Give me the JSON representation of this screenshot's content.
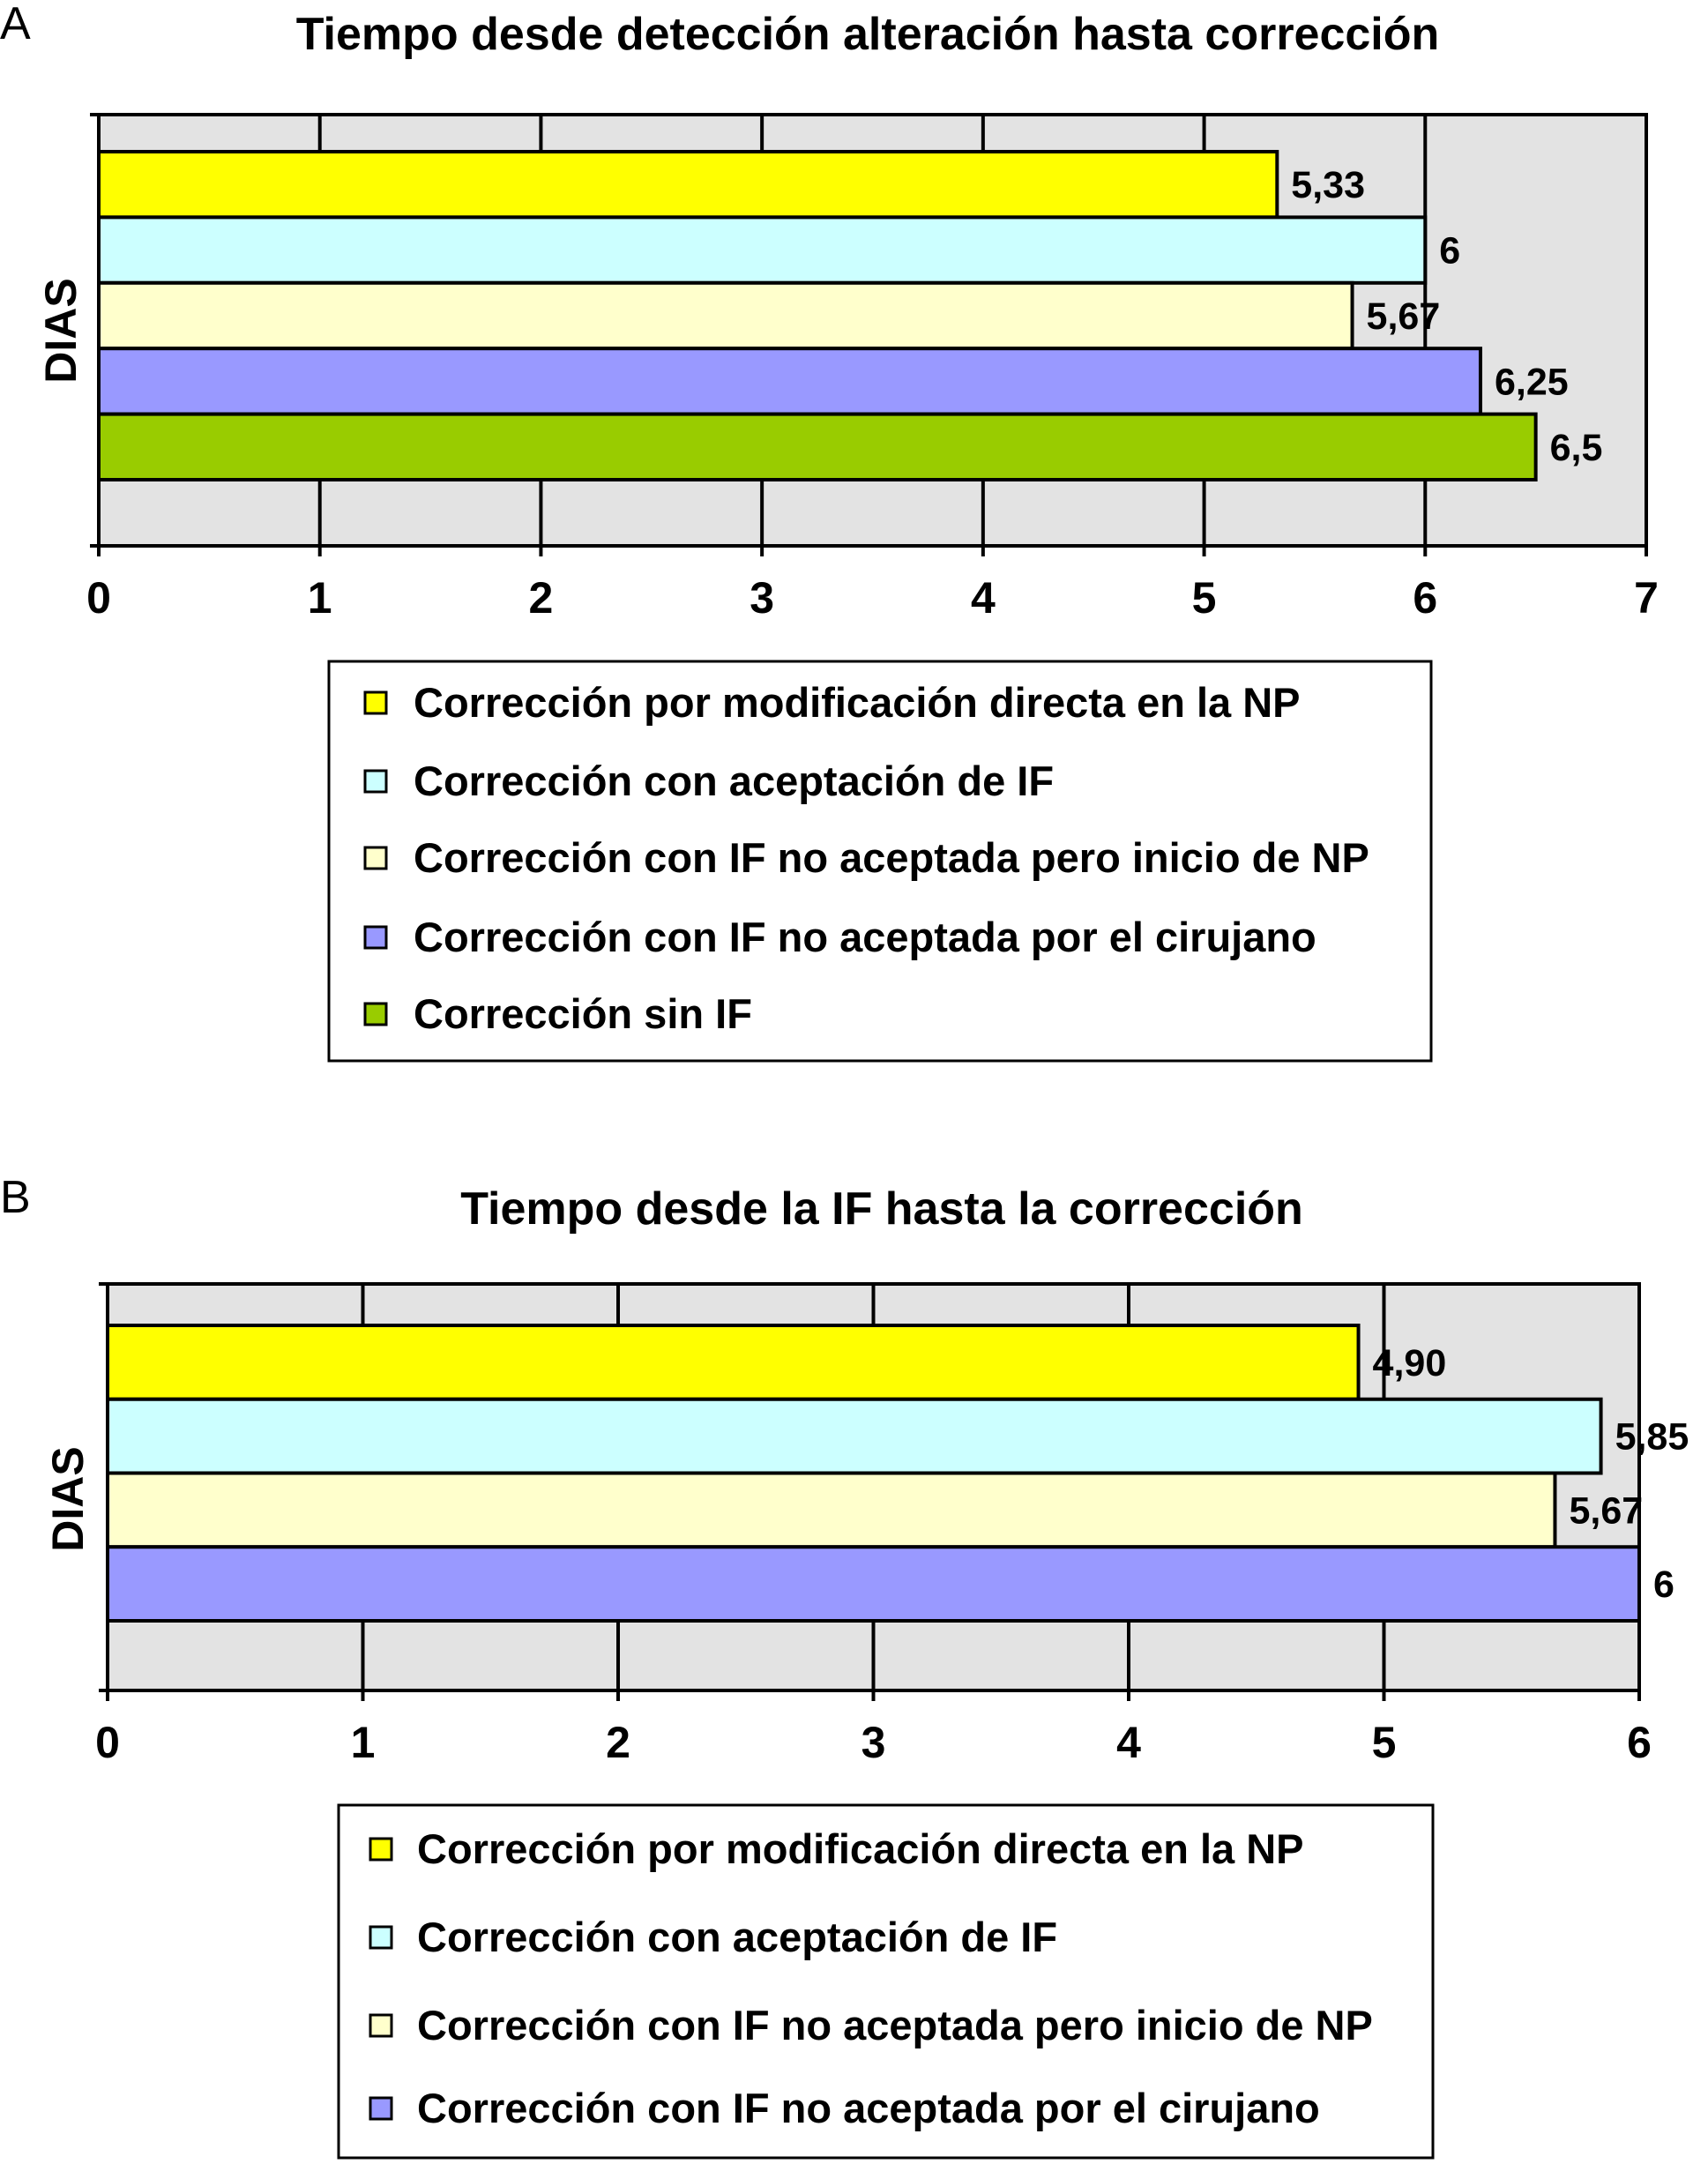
{
  "chart_data": [
    {
      "type": "bar",
      "orientation": "horizontal",
      "panel_label": "A",
      "title": "Tiempo desde detección alteración hasta corrección",
      "ylabel": "DIAS",
      "xlabel": "",
      "xlim": [
        0,
        7
      ],
      "xticks": [
        "0",
        "1",
        "2",
        "3",
        "4",
        "5",
        "6",
        "7"
      ],
      "grid": true,
      "legend_position": "bottom",
      "series": [
        {
          "name": "Corrección por modificación directa en la NP",
          "value": 5.33,
          "label": "5,33",
          "color": "#FFFF00"
        },
        {
          "name": "Corrección con aceptación de IF",
          "value": 6,
          "label": "6",
          "color": "#CCFFFF"
        },
        {
          "name": "Corrección con IF no aceptada pero inicio de NP",
          "value": 5.67,
          "label": "5,67",
          "color": "#FFFFCC"
        },
        {
          "name": "Corrección con IF no aceptada por el cirujano",
          "value": 6.25,
          "label": "6,25",
          "color": "#9999FF"
        },
        {
          "name": "Corrección sin IF",
          "value": 6.5,
          "label": "6,5",
          "color": "#99CC00"
        }
      ]
    },
    {
      "type": "bar",
      "orientation": "horizontal",
      "panel_label": "B",
      "title": "Tiempo desde la IF hasta la corrección",
      "ylabel": "DIAS",
      "xlabel": "",
      "xlim": [
        0,
        6
      ],
      "xticks": [
        "0",
        "1",
        "2",
        "3",
        "4",
        "5",
        "6"
      ],
      "grid": true,
      "legend_position": "bottom",
      "series": [
        {
          "name": "Corrección por modificación directa en la NP",
          "value": 4.9,
          "label": "4,90",
          "color": "#FFFF00"
        },
        {
          "name": "Corrección con aceptación de IF",
          "value": 5.85,
          "label": "5,85",
          "color": "#CCFFFF"
        },
        {
          "name": "Corrección con IF no aceptada pero inicio de NP",
          "value": 5.67,
          "label": "5,67",
          "color": "#FFFFCC"
        },
        {
          "name": "Corrección con IF no aceptada por el cirujano",
          "value": 6,
          "label": "6",
          "color": "#9999FF"
        }
      ]
    }
  ],
  "plot_background": "#E3E3E3"
}
